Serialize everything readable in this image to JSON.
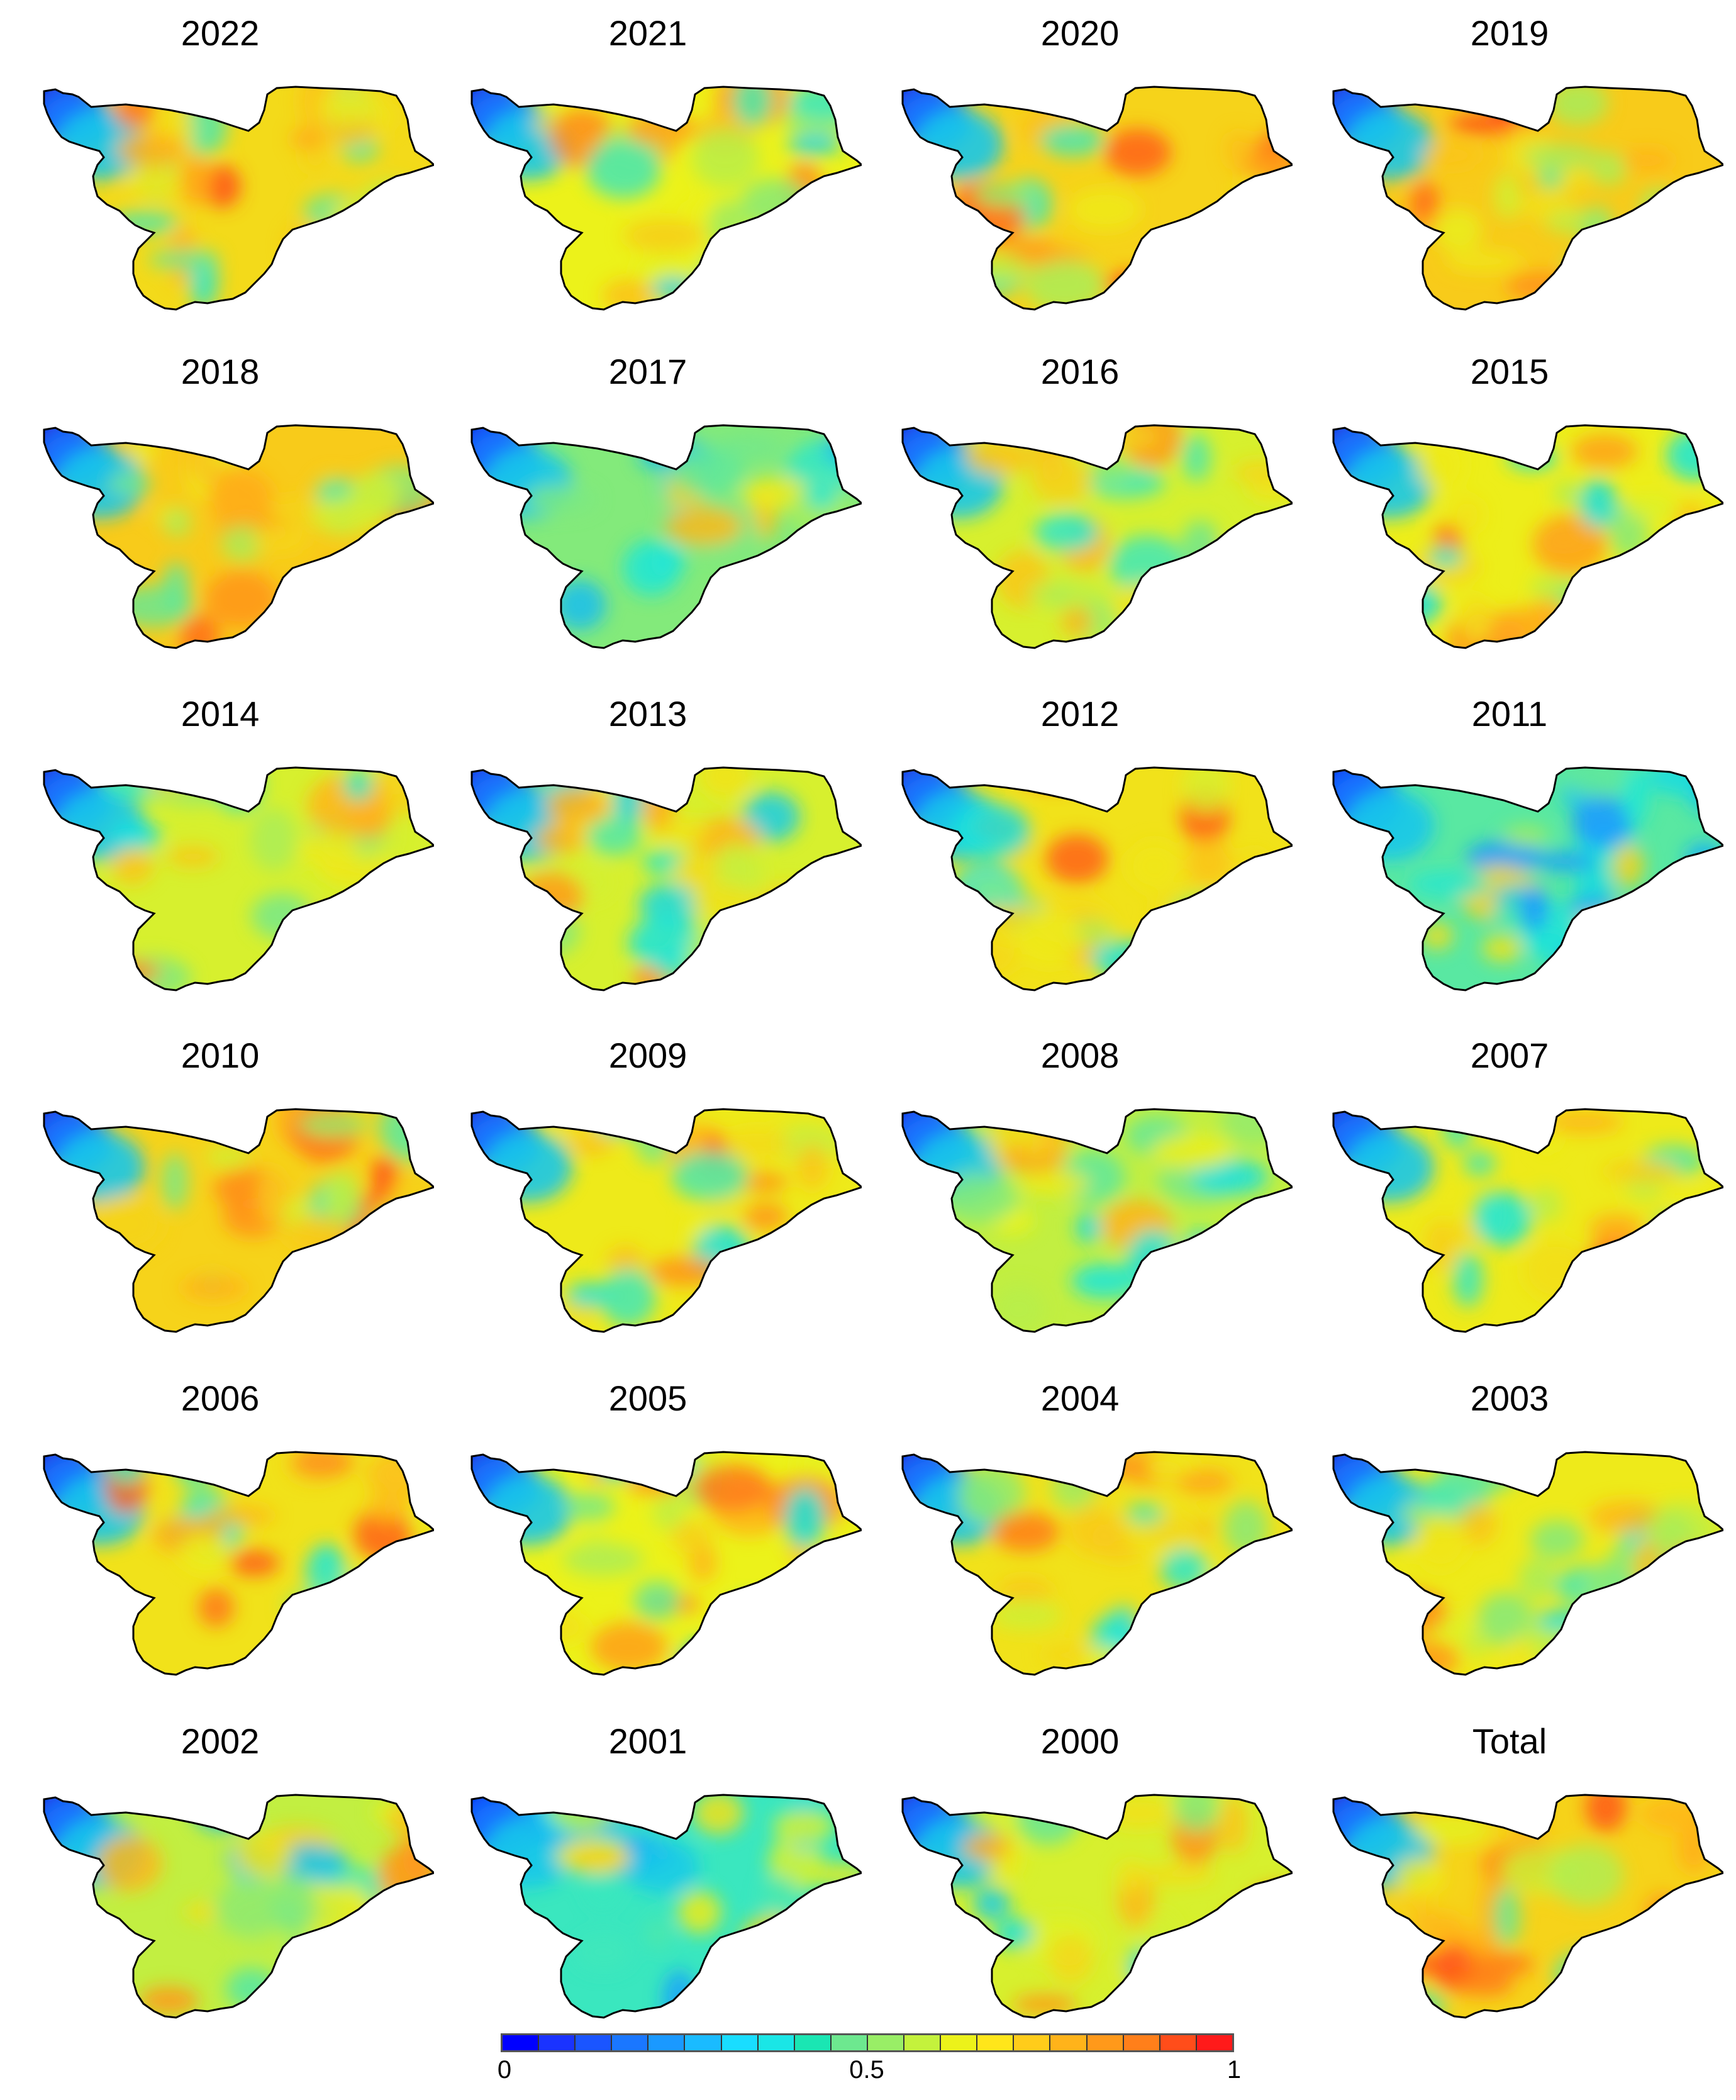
{
  "panels": [
    {
      "title": "2022",
      "level": 0.68
    },
    {
      "title": "2021",
      "level": 0.62
    },
    {
      "title": "2020",
      "level": 0.7
    },
    {
      "title": "2019",
      "level": 0.72
    },
    {
      "title": "2018",
      "level": 0.72
    },
    {
      "title": "2017",
      "level": 0.52
    },
    {
      "title": "2016",
      "level": 0.6
    },
    {
      "title": "2015",
      "level": 0.63
    },
    {
      "title": "2014",
      "level": 0.6
    },
    {
      "title": "2013",
      "level": 0.6
    },
    {
      "title": "2012",
      "level": 0.66
    },
    {
      "title": "2011",
      "level": 0.48
    },
    {
      "title": "2010",
      "level": 0.7
    },
    {
      "title": "2009",
      "level": 0.64
    },
    {
      "title": "2008",
      "level": 0.58
    },
    {
      "title": "2007",
      "level": 0.64
    },
    {
      "title": "2006",
      "level": 0.66
    },
    {
      "title": "2005",
      "level": 0.62
    },
    {
      "title": "2004",
      "level": 0.66
    },
    {
      "title": "2003",
      "level": 0.64
    },
    {
      "title": "2002",
      "level": 0.58
    },
    {
      "title": "2001",
      "level": 0.45
    },
    {
      "title": "2000",
      "level": 0.6
    },
    {
      "title": "Total",
      "level": 0.7
    }
  ],
  "colorbar": {
    "min_label": "0",
    "mid_label": "0.5",
    "max_label": "1",
    "colors": [
      "#0000ff",
      "#1a33ff",
      "#1a55ff",
      "#1a77ff",
      "#1a99ff",
      "#1abbff",
      "#19ddff",
      "#1ae6e6",
      "#1ae6b3",
      "#6de88f",
      "#99ee66",
      "#c4f23c",
      "#ecf21a",
      "#ffe61a",
      "#ffcc1a",
      "#ffb31a",
      "#ff991a",
      "#ff7f1a",
      "#ff4d1a",
      "#ff1a1a"
    ]
  },
  "scale": {
    "low_color": "#0000ff",
    "mid_color": "#ffff00",
    "high_color": "#ff0000"
  }
}
